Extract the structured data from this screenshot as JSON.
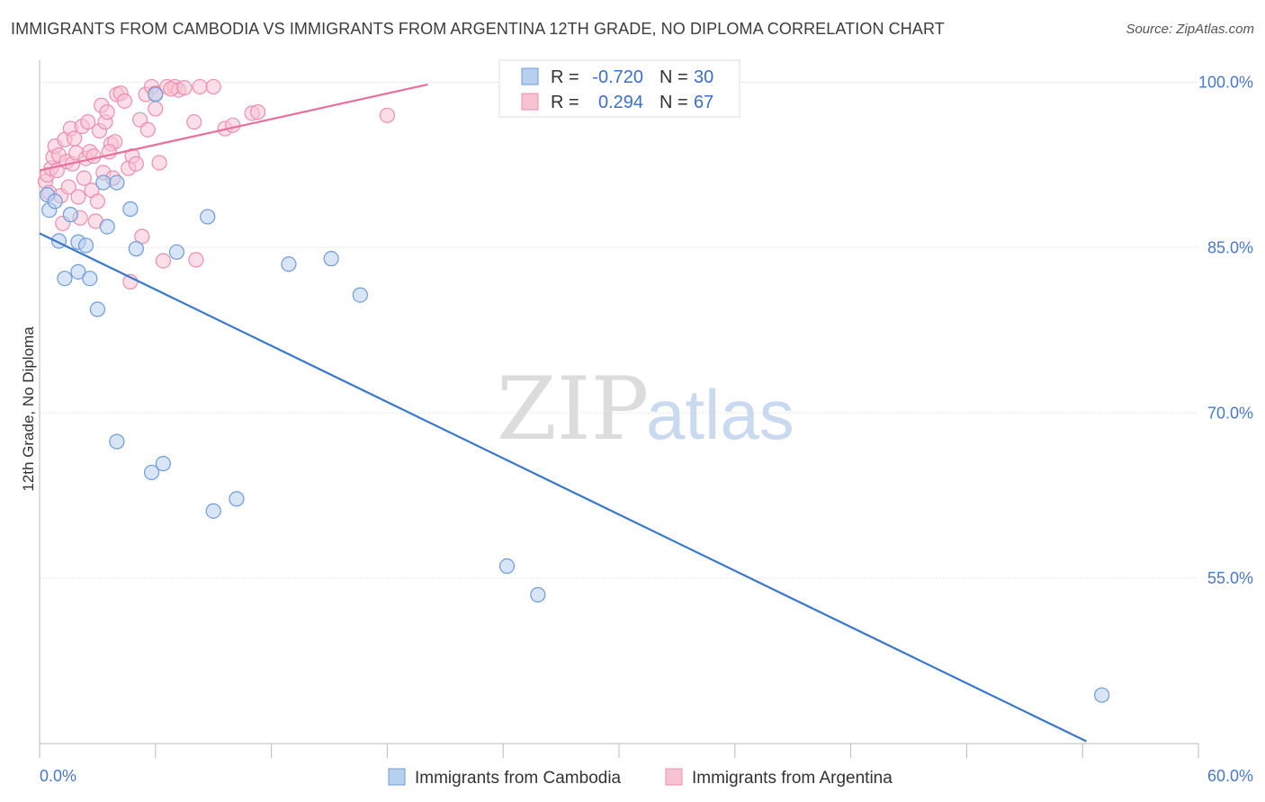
{
  "title": "IMMIGRANTS FROM CAMBODIA VS IMMIGRANTS FROM ARGENTINA 12TH GRADE, NO DIPLOMA CORRELATION CHART",
  "source": "Source: ZipAtlas.com",
  "watermark": {
    "zip": "ZIP",
    "atlas": "atlas"
  },
  "legend": {
    "r_label": "R =",
    "n_label": "N =",
    "cambodia": {
      "r": "-0.720",
      "n": "30"
    },
    "argentina": {
      "r": "0.294",
      "n": "67"
    }
  },
  "bottom_legend": {
    "cambodia": "Immigrants from Cambodia",
    "argentina": "Immigrants from Argentina"
  },
  "colors": {
    "cambodia_fill": "#b8d0f0",
    "cambodia_stroke": "#6f9bd8",
    "cambodia_line": "#3a78d0",
    "argentina_fill": "#f7c3d3",
    "argentina_stroke": "#ec8fae",
    "argentina_line": "#e8709a",
    "grid": "#e4e4e4",
    "tick_label": "#4a78c8"
  },
  "chart_data": {
    "type": "scatter",
    "xlabel": "",
    "ylabel": "12th Grade, No Diploma",
    "xlim": [
      0,
      60
    ],
    "ylim": [
      40,
      102
    ],
    "x_tick_labels": [
      "0.0%",
      "60.0%"
    ],
    "y_ticks": [
      55,
      70,
      85,
      100
    ],
    "y_tick_labels": [
      "55.0%",
      "70.0%",
      "85.0%",
      "100.0%"
    ],
    "series": [
      {
        "name": "Immigrants from Cambodia",
        "points": [
          [
            0.4,
            89.8
          ],
          [
            0.5,
            88.4
          ],
          [
            0.8,
            89.2
          ],
          [
            1.0,
            85.6
          ],
          [
            1.3,
            82.2
          ],
          [
            1.6,
            88.0
          ],
          [
            2.0,
            85.5
          ],
          [
            2.0,
            82.8
          ],
          [
            2.4,
            85.2
          ],
          [
            2.6,
            82.2
          ],
          [
            3.0,
            79.4
          ],
          [
            3.3,
            90.9
          ],
          [
            3.5,
            86.9
          ],
          [
            4.0,
            90.9
          ],
          [
            4.7,
            88.5
          ],
          [
            5.0,
            84.9
          ],
          [
            6.0,
            98.9
          ],
          [
            7.1,
            84.6
          ],
          [
            8.7,
            87.8
          ],
          [
            12.9,
            83.5
          ],
          [
            15.1,
            84.0
          ],
          [
            16.6,
            80.7
          ],
          [
            4.0,
            67.4
          ],
          [
            5.8,
            64.6
          ],
          [
            6.4,
            65.4
          ],
          [
            9.0,
            61.1
          ],
          [
            10.2,
            62.2
          ],
          [
            24.2,
            56.1
          ],
          [
            25.8,
            53.5
          ],
          [
            55.0,
            44.4
          ]
        ]
      },
      {
        "name": "Immigrants from Argentina",
        "points": [
          [
            0.3,
            91.0
          ],
          [
            0.4,
            91.6
          ],
          [
            0.5,
            90.0
          ],
          [
            0.6,
            92.2
          ],
          [
            0.7,
            93.2
          ],
          [
            0.8,
            94.2
          ],
          [
            0.9,
            92.0
          ],
          [
            1.0,
            93.4
          ],
          [
            1.1,
            89.7
          ],
          [
            1.2,
            87.2
          ],
          [
            1.3,
            94.8
          ],
          [
            1.4,
            92.8
          ],
          [
            1.5,
            90.5
          ],
          [
            1.6,
            95.8
          ],
          [
            1.7,
            92.6
          ],
          [
            1.8,
            94.9
          ],
          [
            1.9,
            93.6
          ],
          [
            2.0,
            89.6
          ],
          [
            2.1,
            87.7
          ],
          [
            2.2,
            96.0
          ],
          [
            2.3,
            91.3
          ],
          [
            2.4,
            93.1
          ],
          [
            2.5,
            96.4
          ],
          [
            2.6,
            93.7
          ],
          [
            2.7,
            90.2
          ],
          [
            2.8,
            93.3
          ],
          [
            2.9,
            87.4
          ],
          [
            3.0,
            89.2
          ],
          [
            3.1,
            95.6
          ],
          [
            3.2,
            97.9
          ],
          [
            3.3,
            91.8
          ],
          [
            3.4,
            96.4
          ],
          [
            3.5,
            97.3
          ],
          [
            3.7,
            94.4
          ],
          [
            3.8,
            91.3
          ],
          [
            3.9,
            94.6
          ],
          [
            4.0,
            98.9
          ],
          [
            4.2,
            99.0
          ],
          [
            4.4,
            98.3
          ],
          [
            4.6,
            92.2
          ],
          [
            4.8,
            93.3
          ],
          [
            5.0,
            92.6
          ],
          [
            5.2,
            96.6
          ],
          [
            5.3,
            86.0
          ],
          [
            5.5,
            98.9
          ],
          [
            5.6,
            95.7
          ],
          [
            5.8,
            99.6
          ],
          [
            6.0,
            99.0
          ],
          [
            6.2,
            92.7
          ],
          [
            6.4,
            83.8
          ],
          [
            6.6,
            99.6
          ],
          [
            7.0,
            99.6
          ],
          [
            7.2,
            99.3
          ],
          [
            8.0,
            96.4
          ],
          [
            8.1,
            83.9
          ],
          [
            8.3,
            99.6
          ],
          [
            9.0,
            99.6
          ],
          [
            9.6,
            95.8
          ],
          [
            10.0,
            96.1
          ],
          [
            11.0,
            97.2
          ],
          [
            11.3,
            97.3
          ],
          [
            18.0,
            97.0
          ],
          [
            4.7,
            81.9
          ],
          [
            6.8,
            99.4
          ],
          [
            7.5,
            99.5
          ],
          [
            6.0,
            97.6
          ],
          [
            3.6,
            93.7
          ]
        ]
      }
    ],
    "trend_lines": [
      {
        "name": "Immigrants from Cambodia",
        "x": [
          0,
          54.2
        ],
        "y": [
          86.3,
          40.2
        ]
      },
      {
        "name": "Immigrants from Argentina",
        "x": [
          0,
          20.1
        ],
        "y": [
          92.0,
          99.8
        ]
      }
    ],
    "grid": true
  }
}
